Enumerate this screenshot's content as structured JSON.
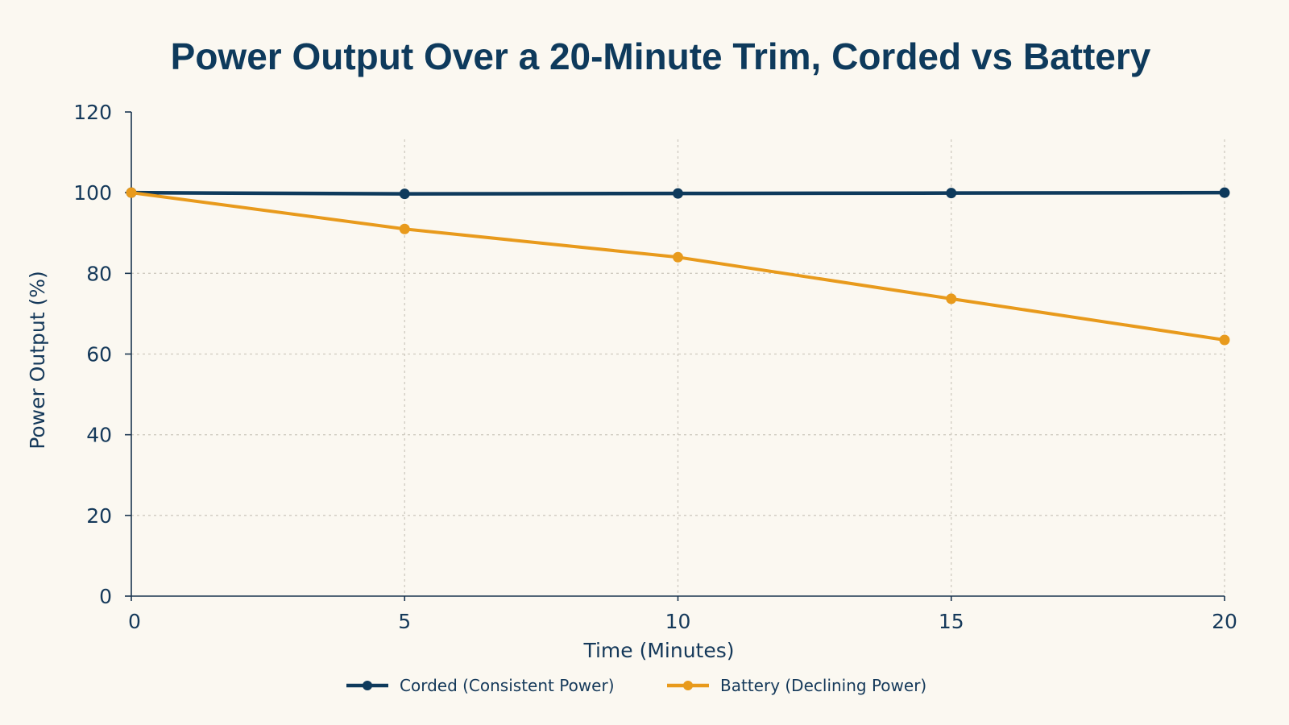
{
  "colors": {
    "background": "#fbf8f1",
    "corded": "#0e3a5c",
    "battery": "#e89a1c",
    "text": "#15395a",
    "grid": "#cfcac0"
  },
  "chart_data": {
    "type": "line",
    "title": "Power Output Over a 20-Minute Trim, Corded vs Battery",
    "xlabel": "Time (Minutes)",
    "ylabel": "Power Output (%)",
    "x": [
      0,
      5,
      10,
      15,
      20
    ],
    "xticks": [
      "0",
      "5",
      "10",
      "15",
      "20"
    ],
    "yticks": [
      "0",
      "20",
      "40",
      "60",
      "80",
      "100",
      "120"
    ],
    "xlim": [
      0,
      20
    ],
    "ylim": [
      0,
      120
    ],
    "grid": true,
    "legend_position": "bottom",
    "series": [
      {
        "name": "Corded (Consistent Power)",
        "color": "#0e3a5c",
        "values": [
          100,
          99.7,
          99.8,
          99.9,
          100
        ]
      },
      {
        "name": "Battery (Declining Power)",
        "color": "#e89a1c",
        "values": [
          100,
          91,
          84,
          73.7,
          63.5
        ]
      }
    ]
  }
}
